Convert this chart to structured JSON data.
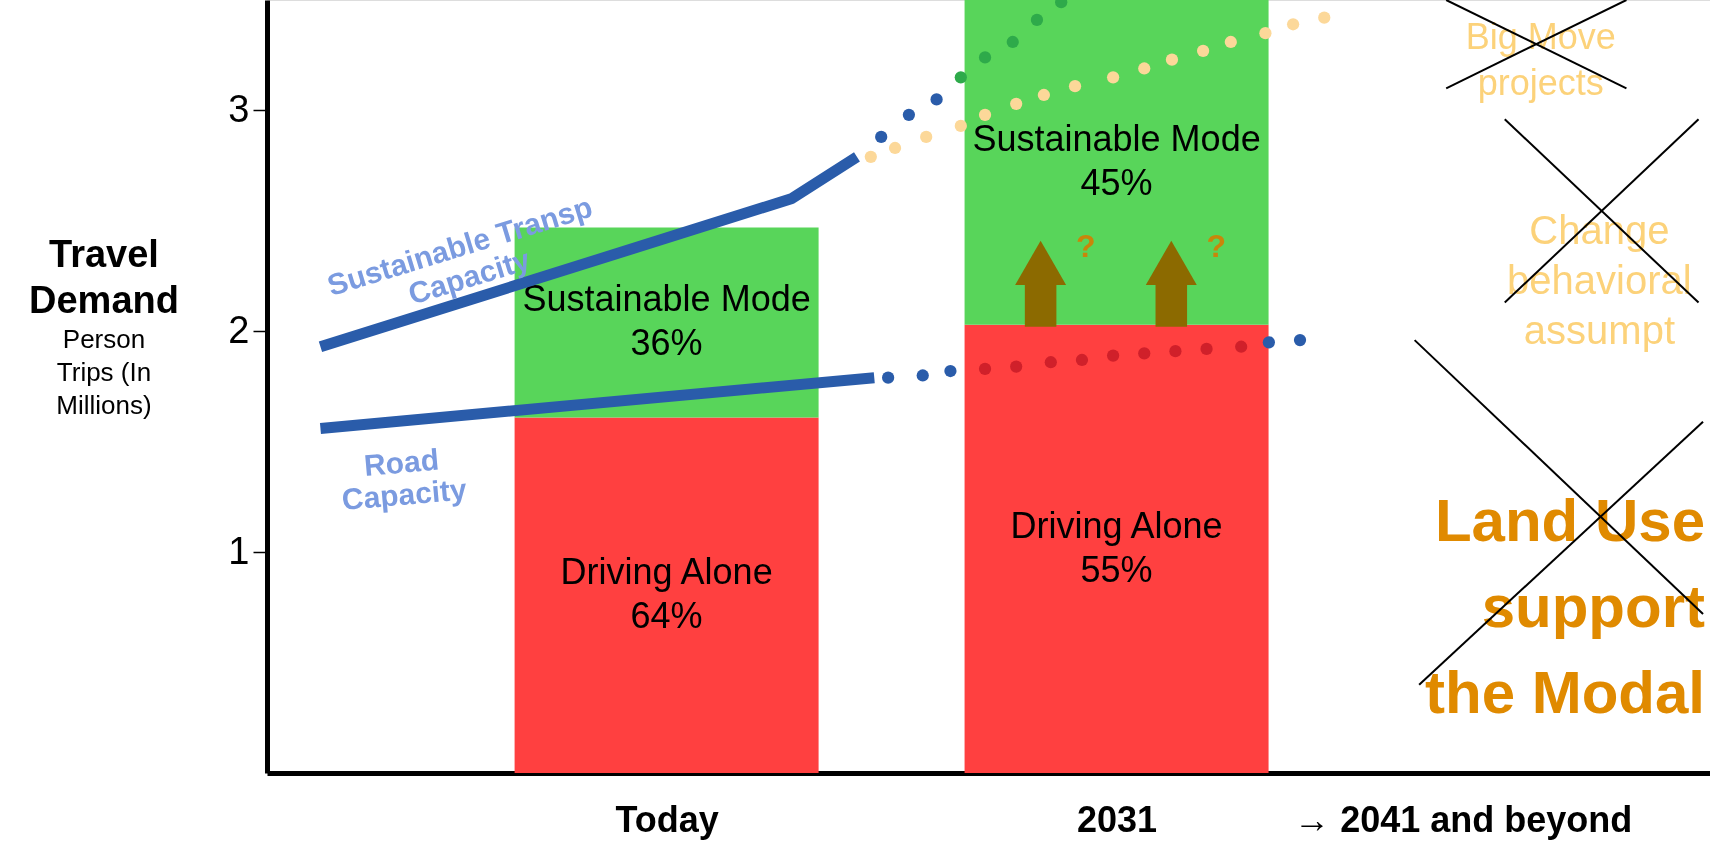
{
  "chart_data": {
    "type": "bar",
    "stacked": true,
    "ylabel": "Travel Demand",
    "x": [
      2018,
      2031
    ],
    "xlim": [
      2006.6,
      2048
    ],
    "xticks": [
      {
        "value": 2018,
        "label": "Today"
      },
      2031,
      {
        "value": 2041,
        "label": "→ 2041 and beyond"
      }
    ],
    "ylim": [
      0,
      3.5
    ],
    "yticks": [
      1,
      2,
      3
    ],
    "grid": false,
    "series": [
      {
        "name": "Driving Alone",
        "color": "#ff4040",
        "values": [
          1.61,
          2.03
        ]
      },
      {
        "name": "Sustainable Mode",
        "color": "#58d55a",
        "values": [
          0.86,
          1.47
        ]
      },
      {
        "type": "scatter",
        "marker": "circle",
        "color": "#fcd899",
        "x": [
          2023.9,
          2024.6,
          2025.5,
          2026.5,
          2027.2,
          2028.1,
          2028.9,
          2029.8,
          2030.9,
          2031.8,
          2032.6,
          2033.5,
          2034.3,
          2035.3,
          2036.1,
          2037.0
        ],
        "values": [
          2.79,
          2.83,
          2.88,
          2.93,
          2.98,
          3.03,
          3.07,
          3.11,
          3.15,
          3.19,
          3.23,
          3.27,
          3.31,
          3.35,
          3.39,
          3.42
        ]
      },
      {
        "name": "Sustainable Transp Capacity",
        "type": "line",
        "line_style": "solid",
        "color": "#2a5caa",
        "x": [
          2008.0,
          2021.6,
          2023.5
        ],
        "values": [
          1.93,
          2.6,
          2.79
        ]
      },
      {
        "type": "scatter",
        "marker": "circle",
        "color": "#2a5caa",
        "x": [
          2024.2,
          2025.0,
          2025.8
        ],
        "values": [
          2.88,
          2.98,
          3.05
        ]
      },
      {
        "type": "scatter",
        "marker": "circle",
        "color": "#2eaa4a",
        "x": [
          2026.5,
          2027.2,
          2028.0,
          2028.7,
          2029.4
        ],
        "values": [
          3.15,
          3.24,
          3.31,
          3.41,
          3.49
        ]
      },
      {
        "name": "Road Capacity",
        "type": "line",
        "line_style": "solid",
        "color": "#2a5caa",
        "x": [
          2008.0,
          2024.0
        ],
        "values": [
          1.56,
          1.79
        ]
      },
      {
        "type": "scatter",
        "marker": "circle",
        "color": "#2a5caa",
        "x": [
          2024.4,
          2025.4,
          2026.2
        ],
        "values": [
          1.79,
          1.8,
          1.82
        ]
      },
      {
        "type": "scatter",
        "marker": "circle",
        "color": "#d0202a",
        "x": [
          2027.2,
          2028.1,
          2029.1,
          2030.0,
          2030.9,
          2031.8,
          2032.7,
          2033.6,
          2034.6
        ],
        "values": [
          1.83,
          1.84,
          1.86,
          1.87,
          1.89,
          1.9,
          1.91,
          1.92,
          1.93
        ]
      },
      {
        "type": "scatter",
        "marker": "circle",
        "color": "#2a5caa",
        "x": [
          2035.4,
          2036.3
        ],
        "values": [
          1.95,
          1.96
        ]
      }
    ],
    "annotations": [
      "Person Trips (In Millions)",
      "?",
      "?",
      "Big Move projects",
      "Change behavioral assumpt",
      "Land Use support the Modal",
      "64%",
      "55%",
      "36%",
      "45%"
    ]
  }
}
